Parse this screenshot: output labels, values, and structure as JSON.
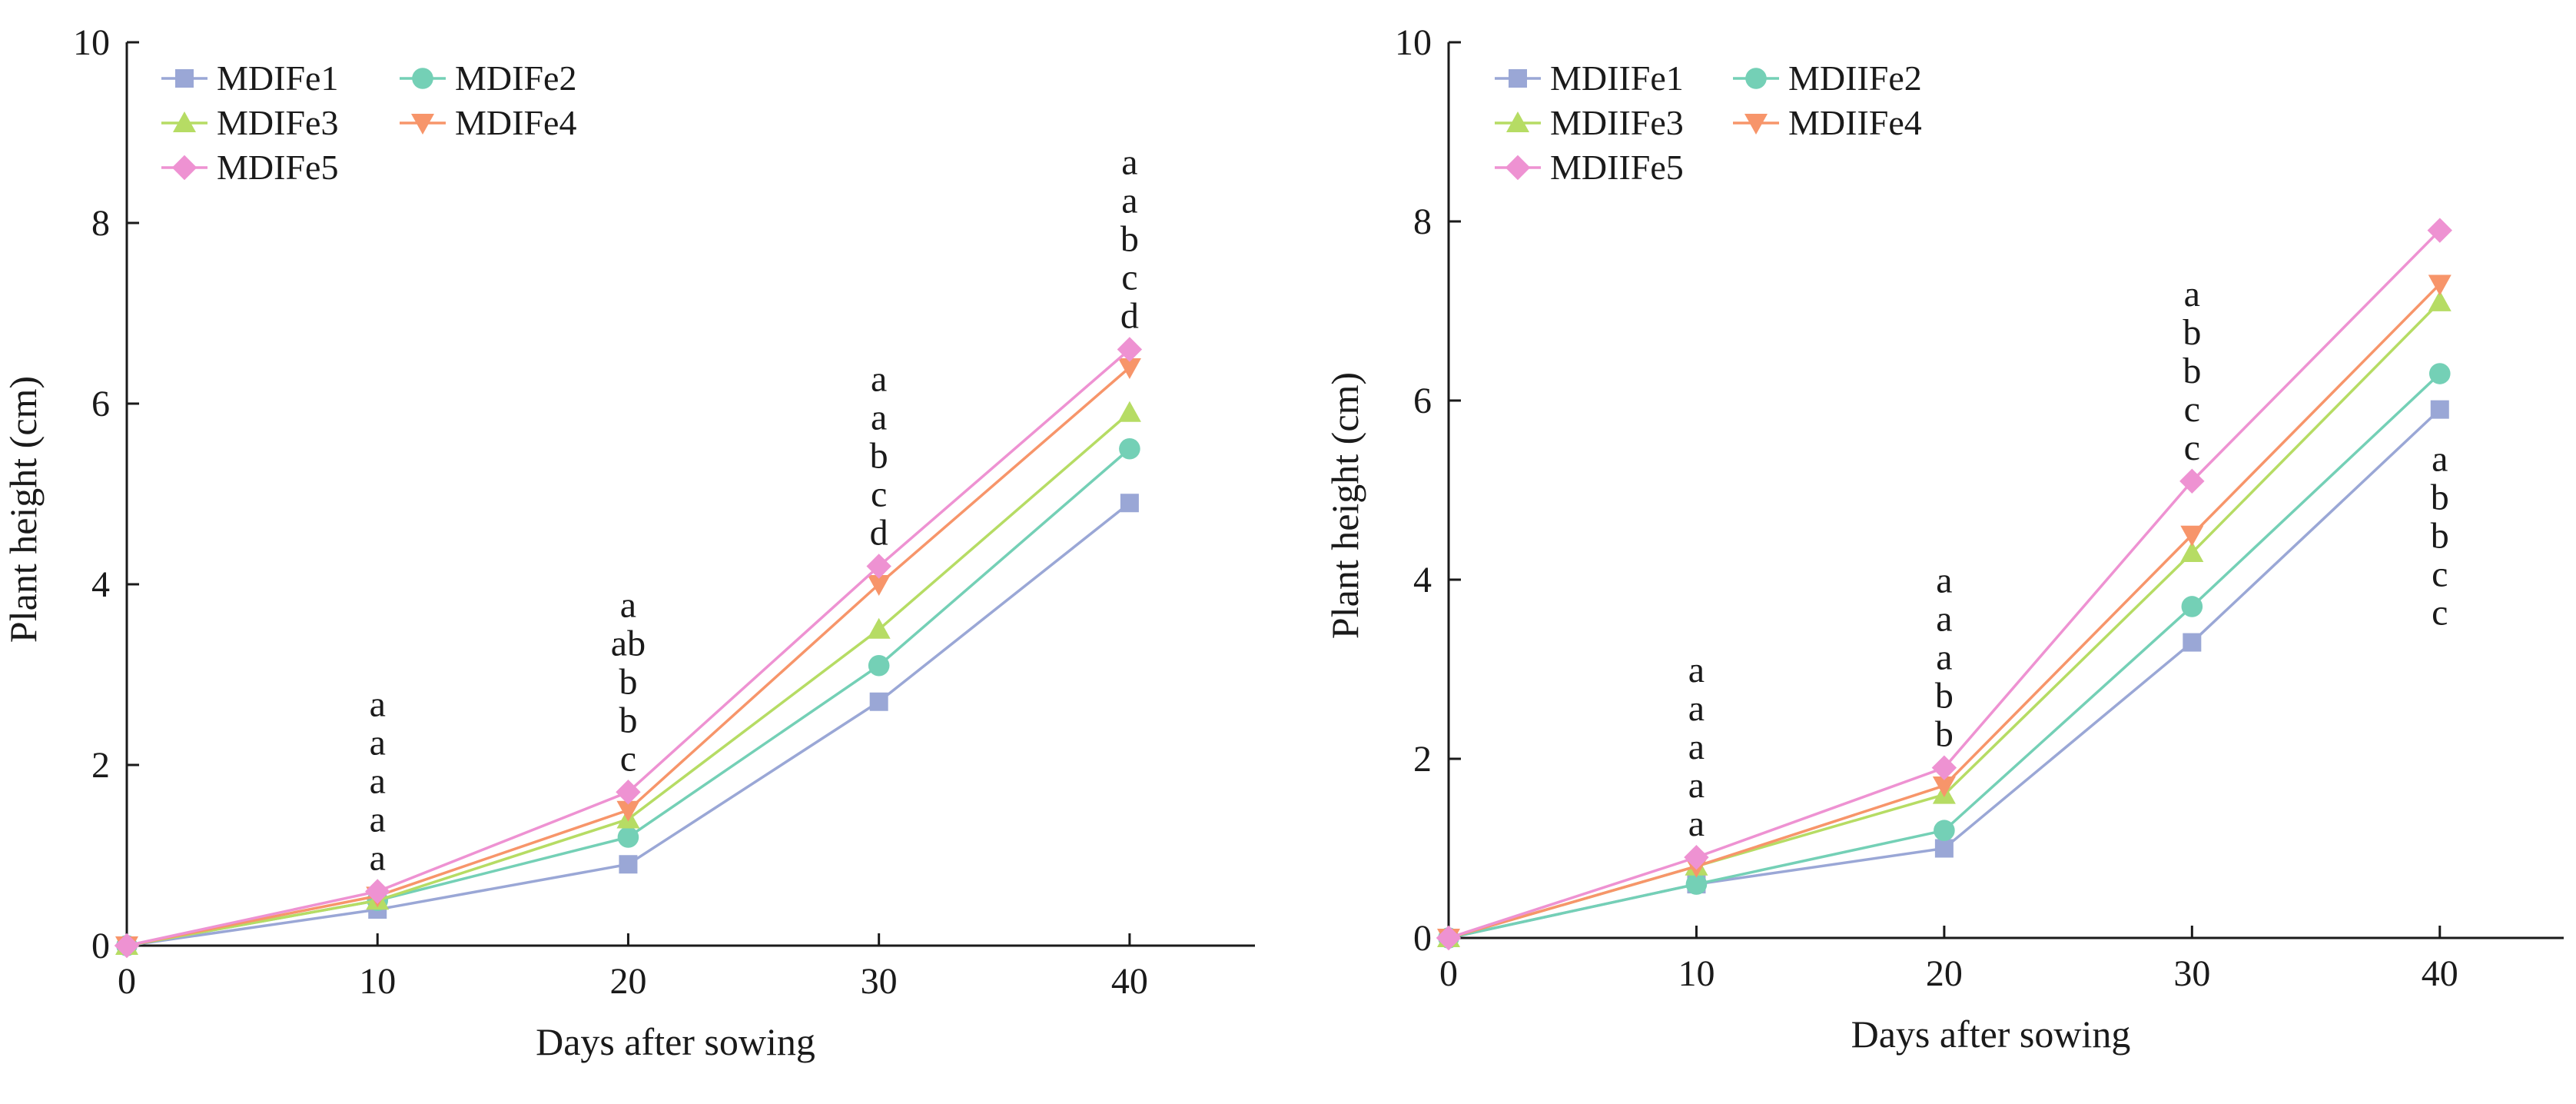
{
  "chart_data": [
    {
      "type": "line",
      "title": "",
      "xlabel": "Days after sowing",
      "ylabel": "Plant height (cm)",
      "xlim": [
        0,
        45
      ],
      "ylim": [
        0,
        10
      ],
      "xticks": [
        0,
        10,
        20,
        30,
        40
      ],
      "yticks": [
        0,
        2,
        4,
        6,
        8,
        10
      ],
      "grid": false,
      "legend": "top-left",
      "x": [
        0,
        10,
        20,
        30,
        40
      ],
      "series": [
        {
          "name": "MDIFe1",
          "color": "#9aa7d6",
          "marker": "square",
          "values": [
            0,
            0.4,
            0.9,
            2.7,
            4.9
          ]
        },
        {
          "name": "MDIFe2",
          "color": "#74d0b6",
          "marker": "circle",
          "values": [
            0,
            0.5,
            1.2,
            3.1,
            5.5
          ]
        },
        {
          "name": "MDIFe3",
          "color": "#b6dc64",
          "marker": "triangle-up",
          "values": [
            0,
            0.5,
            1.4,
            3.5,
            5.9
          ]
        },
        {
          "name": "MDIFe4",
          "color": "#f7956a",
          "marker": "triangle-down",
          "values": [
            0,
            0.55,
            1.5,
            4.0,
            6.4
          ]
        },
        {
          "name": "MDIFe5",
          "color": "#ee92d2",
          "marker": "diamond",
          "values": [
            0,
            0.6,
            1.7,
            4.2,
            6.6
          ]
        }
      ],
      "annotations": [
        {
          "x": 10,
          "letters": [
            "a",
            "a",
            "a",
            "a",
            "a"
          ],
          "position": "above"
        },
        {
          "x": 20,
          "letters": [
            "a",
            "ab",
            "b",
            "b",
            "c"
          ],
          "position": "above"
        },
        {
          "x": 30,
          "letters": [
            "a",
            "a",
            "b",
            "c",
            "d"
          ],
          "position": "above"
        },
        {
          "x": 40,
          "letters": [
            "a",
            "a",
            "b",
            "c",
            "d"
          ],
          "position": "above"
        }
      ]
    },
    {
      "type": "line",
      "title": "",
      "xlabel": "Days after sowing",
      "ylabel": "Plant height (cm)",
      "xlim": [
        0,
        45
      ],
      "ylim": [
        0,
        10
      ],
      "xticks": [
        0,
        10,
        20,
        30,
        40
      ],
      "yticks": [
        0,
        2,
        4,
        6,
        8,
        10
      ],
      "grid": false,
      "legend": "top-left",
      "x": [
        0,
        10,
        20,
        30,
        40
      ],
      "series": [
        {
          "name": "MDIIFe1",
          "color": "#9aa7d6",
          "marker": "square",
          "values": [
            0,
            0.6,
            1.0,
            3.3,
            5.9
          ]
        },
        {
          "name": "MDIIFe2",
          "color": "#74d0b6",
          "marker": "circle",
          "values": [
            0,
            0.6,
            1.2,
            3.7,
            6.3
          ]
        },
        {
          "name": "MDIIFe3",
          "color": "#b6dc64",
          "marker": "triangle-up",
          "values": [
            0,
            0.8,
            1.6,
            4.3,
            7.1
          ]
        },
        {
          "name": "MDIIFe4",
          "color": "#f7956a",
          "marker": "triangle-down",
          "values": [
            0,
            0.8,
            1.7,
            4.5,
            7.3
          ]
        },
        {
          "name": "MDIIFe5",
          "color": "#ee92d2",
          "marker": "diamond",
          "values": [
            0,
            0.9,
            1.9,
            5.1,
            7.9
          ]
        }
      ],
      "annotations": [
        {
          "x": 10,
          "letters": [
            "a",
            "a",
            "a",
            "a",
            "a"
          ],
          "position": "above"
        },
        {
          "x": 20,
          "letters": [
            "a",
            "a",
            "a",
            "b",
            "b"
          ],
          "position": "above"
        },
        {
          "x": 30,
          "letters": [
            "a",
            "b",
            "b",
            "c",
            "c"
          ],
          "position": "above"
        },
        {
          "x": 40,
          "letters": [
            "a",
            "b",
            "b",
            "c",
            "c"
          ],
          "position": "below"
        }
      ]
    }
  ]
}
